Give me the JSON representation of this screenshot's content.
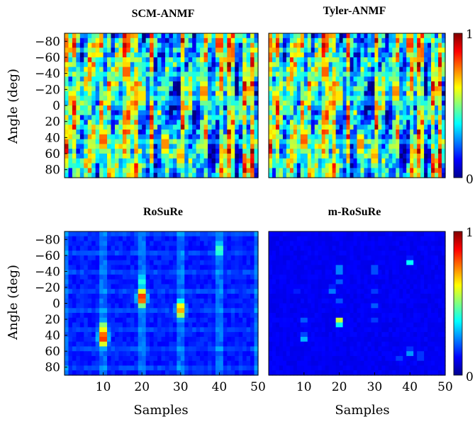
{
  "chart_data": [
    {
      "type": "heatmap",
      "title": "SCM-ANMF",
      "xlabel": "",
      "ylabel": "Angle (deg)",
      "xlim": [
        0,
        50
      ],
      "ylim": [
        -90,
        90
      ],
      "xticks": [],
      "yticks": [
        "-80",
        "-60",
        "-40",
        "-20",
        "0",
        "20",
        "40",
        "60",
        "80"
      ],
      "colormap": "jet",
      "vrange": [
        0,
        1
      ],
      "style": "dense",
      "peaks": [
        {
          "x": 40,
          "y": -80,
          "value": 0.95
        },
        {
          "x": 16,
          "y": -45,
          "value": 0.9
        },
        {
          "x": 36,
          "y": -20,
          "value": 0.85
        },
        {
          "x": 20,
          "y": -15,
          "value": 0.75
        },
        {
          "x": 10,
          "y": 40,
          "value": 0.9
        },
        {
          "x": 26,
          "y": 45,
          "value": 0.85
        },
        {
          "x": 30,
          "y": 60,
          "value": 0.8
        },
        {
          "x": 2,
          "y": -10,
          "value": 0.8
        }
      ]
    },
    {
      "type": "heatmap",
      "title": "Tyler-ANMF",
      "xlabel": "",
      "ylabel": "",
      "xlim": [
        0,
        50
      ],
      "ylim": [
        -90,
        90
      ],
      "xticks": [],
      "yticks": [],
      "colormap": "jet",
      "vrange": [
        0,
        1
      ],
      "style": "dense",
      "peaks": [
        {
          "x": 40,
          "y": -80,
          "value": 0.95
        },
        {
          "x": 16,
          "y": -45,
          "value": 0.9
        },
        {
          "x": 36,
          "y": -20,
          "value": 0.85
        },
        {
          "x": 20,
          "y": -15,
          "value": 0.75
        },
        {
          "x": 10,
          "y": 40,
          "value": 0.9
        },
        {
          "x": 26,
          "y": 45,
          "value": 0.85
        },
        {
          "x": 30,
          "y": 60,
          "value": 0.8
        },
        {
          "x": 2,
          "y": -10,
          "value": 0.8
        }
      ]
    },
    {
      "type": "heatmap",
      "title": "RoSuRe",
      "xlabel": "Samples",
      "ylabel": "Angle (deg)",
      "xlim": [
        0,
        50
      ],
      "ylim": [
        -90,
        90
      ],
      "xticks": [
        "10",
        "20",
        "30",
        "40",
        "50"
      ],
      "yticks": [
        "-80",
        "-60",
        "-40",
        "-20",
        "0",
        "20",
        "40",
        "60",
        "80"
      ],
      "colormap": "jet",
      "vrange": [
        0,
        1
      ],
      "style": "sparse",
      "peaks": [
        {
          "x": 10,
          "y": 40,
          "value": 0.95
        },
        {
          "x": 10,
          "y": 30,
          "value": 0.7
        },
        {
          "x": 20,
          "y": -10,
          "value": 0.95
        },
        {
          "x": 20,
          "y": -30,
          "value": 0.45
        },
        {
          "x": 30,
          "y": 5,
          "value": 0.8
        },
        {
          "x": 40,
          "y": -70,
          "value": 0.5
        }
      ]
    },
    {
      "type": "heatmap",
      "title": "m-RoSuRe",
      "xlabel": "Samples",
      "ylabel": "",
      "xlim": [
        0,
        50
      ],
      "ylim": [
        -90,
        90
      ],
      "xticks": [
        "10",
        "20",
        "30",
        "40",
        "50"
      ],
      "yticks": [],
      "colormap": "jet",
      "vrange": [
        0,
        1
      ],
      "style": "points",
      "peaks": [
        {
          "x": 20,
          "y": 20,
          "value": 0.95
        },
        {
          "x": 40,
          "y": -55,
          "value": 0.55
        },
        {
          "x": 10,
          "y": 40,
          "value": 0.5
        },
        {
          "x": 20,
          "y": -45,
          "value": 0.5
        },
        {
          "x": 30,
          "y": -45,
          "value": 0.4
        },
        {
          "x": 18,
          "y": -20,
          "value": 0.4
        },
        {
          "x": 40,
          "y": 58,
          "value": 0.45
        },
        {
          "x": 20,
          "y": -30,
          "value": 0.3
        },
        {
          "x": 30,
          "y": -20,
          "value": 0.3
        },
        {
          "x": 10,
          "y": 20,
          "value": 0.35
        },
        {
          "x": 30,
          "y": 0,
          "value": 0.3
        },
        {
          "x": 20,
          "y": -5,
          "value": 0.3
        },
        {
          "x": 43,
          "y": 63,
          "value": 0.35
        },
        {
          "x": 37,
          "y": 68,
          "value": 0.3
        },
        {
          "x": 8,
          "y": -20,
          "value": 0.25
        },
        {
          "x": 30,
          "y": 20,
          "value": 0.3
        }
      ]
    }
  ],
  "colorbars": [
    {
      "max_label": "1",
      "min_label": "0"
    },
    {
      "max_label": "1",
      "min_label": "0"
    }
  ]
}
